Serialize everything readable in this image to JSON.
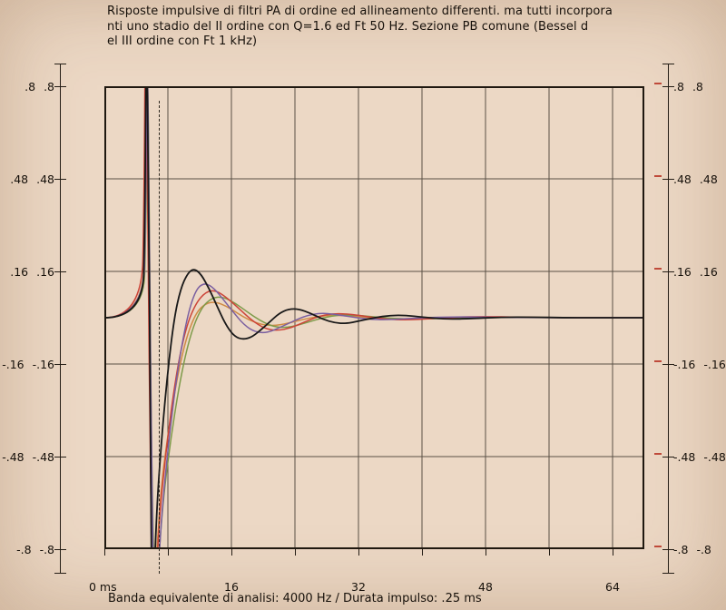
{
  "page": {
    "title_lines": [
      "Risposte impulsive di filtri PA di ordine ed allineamento differenti. ma tutti incorpora",
      "nti uno stadio del II ordine con Q=1.6 ed Ft 50 Hz. Sezione PB comune (Bessel d",
      "el III ordine con Ft 1 kHz)"
    ],
    "footer_caption": "Banda equivalente di analisi: 4000 Hz / Durata impulso: .25 ms"
  },
  "axes": {
    "y_labels": [
      ".8",
      ".48",
      ".16",
      "-.16",
      "-.48",
      "-.8"
    ],
    "x_labels": [
      "0 ms",
      "16",
      "32",
      "48",
      "64"
    ]
  },
  "chart_data": {
    "type": "line",
    "title": "Risposte impulsive di filtri PA di ordine ed allineamento differenti, ma tutti incorporanti uno stadio del II ordine con Q=1.6 ed Ft 50 Hz. Sezione PB comune (Bessel del III ordine con Ft 1 kHz)",
    "xlabel": "ms",
    "ylabel": "",
    "x_range": [
      0,
      68
    ],
    "y_range": [
      -0.8,
      0.8
    ],
    "x_tick_values": [
      0,
      16,
      32,
      48,
      64
    ],
    "y_tick_values": [
      0.8,
      0.48,
      0.16,
      -0.16,
      -0.48,
      -0.8
    ],
    "x_grid_step": 8,
    "y_grid_values": [
      0.48,
      0.16,
      -0.16,
      -0.48
    ],
    "grid": true,
    "legend": "none",
    "cursor_ms": 6.9,
    "series": [
      {
        "name": "orange",
        "color": "#cf8a45",
        "width": 1.5,
        "points": [
          [
            0,
            0
          ],
          [
            4.85,
            0
          ],
          [
            5.15,
            0.35
          ],
          [
            5.35,
            1.0
          ],
          [
            5.65,
            0.05
          ],
          [
            5.95,
            -0.55
          ],
          [
            6.25,
            -0.98
          ],
          [
            7,
            -0.62
          ],
          [
            8,
            -0.4
          ],
          [
            9.2,
            -0.2
          ],
          [
            10.4,
            -0.06
          ],
          [
            11.6,
            0.02
          ],
          [
            12.8,
            0.05
          ],
          [
            14,
            0.055
          ],
          [
            15.4,
            0.04
          ],
          [
            16.8,
            0.015
          ],
          [
            18.2,
            -0.008
          ],
          [
            19.8,
            -0.024
          ],
          [
            21.4,
            -0.028
          ],
          [
            23,
            -0.02
          ],
          [
            25,
            -0.006
          ],
          [
            27,
            0.005
          ],
          [
            29,
            0.009
          ],
          [
            31,
            0.006
          ],
          [
            33.5,
            0
          ],
          [
            36.5,
            -0.004
          ],
          [
            40,
            -0.003
          ],
          [
            44,
            0.001
          ],
          [
            48,
            0.002
          ],
          [
            53,
            0.001
          ],
          [
            60,
            0
          ],
          [
            68,
            0
          ]
        ]
      },
      {
        "name": "green",
        "color": "#7e9b4a",
        "width": 1.5,
        "points": [
          [
            0,
            0
          ],
          [
            4.9,
            0
          ],
          [
            5.25,
            0.3
          ],
          [
            5.45,
            1.0
          ],
          [
            5.75,
            0
          ],
          [
            6.05,
            -0.65
          ],
          [
            6.4,
            -1.05
          ],
          [
            7.2,
            -0.68
          ],
          [
            8.2,
            -0.45
          ],
          [
            9.5,
            -0.22
          ],
          [
            10.8,
            -0.06
          ],
          [
            12.2,
            0.035
          ],
          [
            13.6,
            0.07
          ],
          [
            15,
            0.072
          ],
          [
            16.5,
            0.05
          ],
          [
            18,
            0.02
          ],
          [
            19.6,
            -0.01
          ],
          [
            21.2,
            -0.03
          ],
          [
            22.8,
            -0.035
          ],
          [
            24.5,
            -0.025
          ],
          [
            26.5,
            -0.008
          ],
          [
            28.5,
            0.006
          ],
          [
            30.5,
            0.01
          ],
          [
            32.5,
            0.007
          ],
          [
            35,
            0
          ],
          [
            38,
            -0.005
          ],
          [
            41,
            -0.004
          ],
          [
            45,
            0.001
          ],
          [
            49,
            0.003
          ],
          [
            54,
            0.001
          ],
          [
            60,
            0
          ],
          [
            68,
            0
          ]
        ]
      },
      {
        "name": "red",
        "color": "#cc4438",
        "width": 1.5,
        "points": [
          [
            0,
            0
          ],
          [
            4.7,
            0
          ],
          [
            5,
            0.4
          ],
          [
            5.2,
            1.15
          ],
          [
            5.5,
            0.2
          ],
          [
            5.8,
            -0.5
          ],
          [
            6.1,
            -1.2
          ],
          [
            6.8,
            -0.72
          ],
          [
            7.8,
            -0.45
          ],
          [
            9,
            -0.2
          ],
          [
            10.2,
            -0.04
          ],
          [
            11.5,
            0.05
          ],
          [
            12.8,
            0.09
          ],
          [
            14,
            0.095
          ],
          [
            15.4,
            0.07
          ],
          [
            17,
            0.03
          ],
          [
            18.6,
            -0.01
          ],
          [
            20.2,
            -0.038
          ],
          [
            21.8,
            -0.045
          ],
          [
            23.5,
            -0.035
          ],
          [
            25.2,
            -0.015
          ],
          [
            27,
            0.005
          ],
          [
            29,
            0.015
          ],
          [
            31,
            0.012
          ],
          [
            33,
            0.004
          ],
          [
            35.5,
            -0.005
          ],
          [
            38,
            -0.008
          ],
          [
            41,
            -0.004
          ],
          [
            44,
            0.002
          ],
          [
            48,
            0.004
          ],
          [
            52,
            0.002
          ],
          [
            58,
            0
          ],
          [
            64,
            0
          ],
          [
            68,
            0
          ]
        ]
      },
      {
        "name": "violet",
        "color": "#7a5fa0",
        "width": 1.5,
        "points": [
          [
            0,
            0
          ],
          [
            4.9,
            0
          ],
          [
            5.2,
            0.35
          ],
          [
            5.4,
            1.05
          ],
          [
            5.7,
            0.1
          ],
          [
            6,
            -0.6
          ],
          [
            6.3,
            -1.15
          ],
          [
            7,
            -0.75
          ],
          [
            8,
            -0.45
          ],
          [
            9.2,
            -0.18
          ],
          [
            10.4,
            0
          ],
          [
            11.4,
            0.09
          ],
          [
            12.4,
            0.12
          ],
          [
            13.5,
            0.11
          ],
          [
            14.8,
            0.07
          ],
          [
            16.2,
            0.02
          ],
          [
            17.6,
            -0.025
          ],
          [
            19,
            -0.05
          ],
          [
            20.5,
            -0.052
          ],
          [
            22,
            -0.035
          ],
          [
            23.8,
            -0.012
          ],
          [
            25.5,
            0.008
          ],
          [
            27.2,
            0.016
          ],
          [
            29,
            0.012
          ],
          [
            31,
            0.003
          ],
          [
            33.5,
            -0.006
          ],
          [
            36,
            -0.007
          ],
          [
            39,
            -0.002
          ],
          [
            42,
            0.002
          ],
          [
            46,
            0.003
          ],
          [
            50,
            0.001
          ],
          [
            56,
            0
          ],
          [
            62,
            0
          ],
          [
            68,
            0
          ]
        ]
      },
      {
        "name": "black",
        "color": "#181818",
        "width": 1.8,
        "points": [
          [
            0,
            0
          ],
          [
            4.8,
            0
          ],
          [
            5.1,
            0.3
          ],
          [
            5.3,
            1.1
          ],
          [
            5.55,
            0.4
          ],
          [
            5.8,
            -0.3
          ],
          [
            6,
            -1.15
          ],
          [
            6.5,
            -0.7
          ],
          [
            7.2,
            -0.42
          ],
          [
            8,
            -0.18
          ],
          [
            8.8,
            0
          ],
          [
            9.6,
            0.1
          ],
          [
            10.5,
            0.155
          ],
          [
            11.3,
            0.17
          ],
          [
            12.2,
            0.15
          ],
          [
            13.2,
            0.1
          ],
          [
            14.2,
            0.04
          ],
          [
            15.2,
            -0.02
          ],
          [
            16.2,
            -0.06
          ],
          [
            17.2,
            -0.075
          ],
          [
            18.4,
            -0.07
          ],
          [
            19.6,
            -0.045
          ],
          [
            20.8,
            -0.015
          ],
          [
            22,
            0.015
          ],
          [
            23.2,
            0.03
          ],
          [
            24.5,
            0.03
          ],
          [
            26,
            0.015
          ],
          [
            27.5,
            -0.005
          ],
          [
            29,
            -0.018
          ],
          [
            30.5,
            -0.02
          ],
          [
            32,
            -0.012
          ],
          [
            34,
            0
          ],
          [
            36,
            0.008
          ],
          [
            38,
            0.008
          ],
          [
            40,
            0.002
          ],
          [
            43,
            -0.005
          ],
          [
            46,
            -0.003
          ],
          [
            50,
            0.002
          ],
          [
            54,
            0.002
          ],
          [
            58,
            0
          ],
          [
            62,
            0
          ],
          [
            68,
            0
          ]
        ]
      }
    ]
  }
}
